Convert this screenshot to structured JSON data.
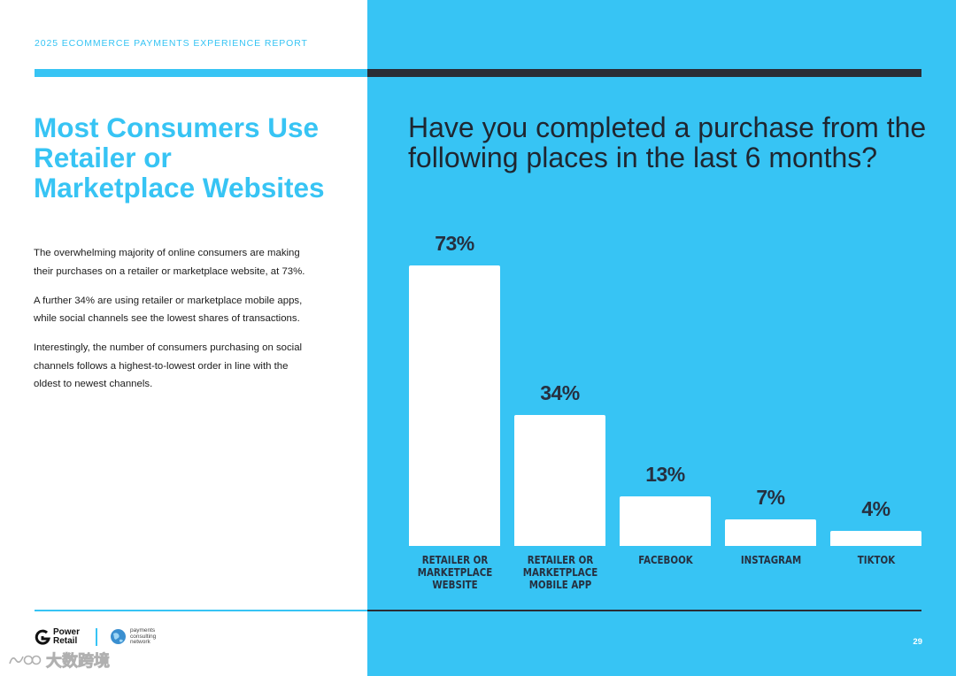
{
  "header": {
    "report_title": "2025 ECOMMERCE PAYMENTS EXPERIENCE REPORT"
  },
  "section": {
    "title": "Most Consumers Use Retailer or Marketplace Websites",
    "paragraphs": [
      "The overwhelming majority of online consumers are making their purchases on a retailer or marketplace website, at 73%.",
      "A further 34% are using retailer or marketplace mobile apps, while social channels see the lowest shares of transactions.",
      "Interestingly, the number of consumers purchasing on social channels follows a highest-to-lowest order in line with the oldest to newest channels."
    ]
  },
  "chart_data": {
    "type": "bar",
    "title": "Have you completed a purchase from the following places in the last 6 months?",
    "categories": [
      "RETAILER OR MARKETPLACE WEBSITE",
      "RETAILER OR MARKETPLACE MOBILE APP",
      "FACEBOOK",
      "INSTAGRAM",
      "TIKTOK"
    ],
    "values": [
      73,
      34,
      13,
      7,
      4
    ],
    "value_labels": [
      "73%",
      "34%",
      "13%",
      "7%",
      "4%"
    ],
    "ylim": [
      0,
      73
    ],
    "grid": false,
    "bar_color": "#ffffff",
    "background_color": "#37c4f4"
  },
  "footer": {
    "logo_power_retail": "Power Retail",
    "logo_power_retail_lines": [
      "Power",
      "Retail"
    ],
    "logo_pcn_lines": [
      "payments",
      "consulting",
      "network"
    ],
    "page_number": "29",
    "watermark": "大数跨境"
  },
  "colors": {
    "accent_blue": "#37c4f4",
    "dark": "#2a2d35"
  }
}
